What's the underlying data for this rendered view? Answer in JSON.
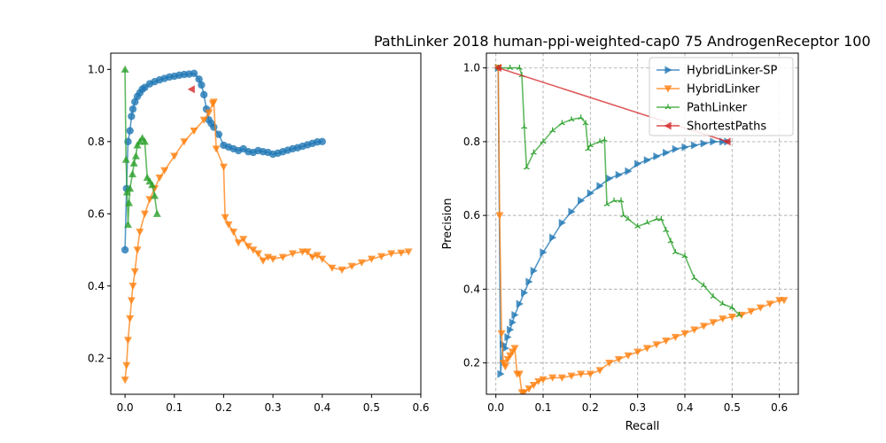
{
  "title": "PathLinker 2018 human-ppi-weighted-cap0 75 AndrogenReceptor 100",
  "colors": {
    "blue": "#1f77b4",
    "orange": "#ff7f0e",
    "green": "#2ca02c",
    "red": "#d62728"
  },
  "chart_data": [
    {
      "type": "line",
      "xlim": [
        -0.029,
        0.6
      ],
      "ylim": [
        0.1,
        1.045
      ],
      "xticks": [
        0.0,
        0.1,
        0.2,
        0.3,
        0.4,
        0.5,
        0.6
      ],
      "xtick_labels": [
        "0.0",
        "0.1",
        "0.2",
        "0.3",
        "0.4",
        "0.5",
        "0.6"
      ],
      "yticks": [
        0.2,
        0.4,
        0.6,
        0.8,
        1.0
      ],
      "ytick_labels": [
        "0.2",
        "0.4",
        "0.6",
        "0.8",
        "1.0"
      ],
      "xlabel": "",
      "ylabel": "",
      "grid": false,
      "series": [
        {
          "name": "HybridLinker-SP",
          "color": "#1f77b4",
          "marker": "circle",
          "x": [
            0.0,
            0.003,
            0.006,
            0.01,
            0.013,
            0.016,
            0.02,
            0.025,
            0.03,
            0.035,
            0.04,
            0.05,
            0.06,
            0.07,
            0.08,
            0.09,
            0.1,
            0.11,
            0.12,
            0.13,
            0.14,
            0.15,
            0.155,
            0.16,
            0.165,
            0.17,
            0.175,
            0.18,
            0.19,
            0.2,
            0.21,
            0.22,
            0.23,
            0.24,
            0.25,
            0.26,
            0.27,
            0.28,
            0.29,
            0.3,
            0.31,
            0.32,
            0.33,
            0.34,
            0.35,
            0.36,
            0.37,
            0.38,
            0.39,
            0.4
          ],
          "y": [
            0.5,
            0.67,
            0.8,
            0.83,
            0.87,
            0.89,
            0.91,
            0.925,
            0.935,
            0.945,
            0.95,
            0.96,
            0.966,
            0.971,
            0.975,
            0.979,
            0.981,
            0.984,
            0.986,
            0.987,
            0.989,
            0.973,
            0.957,
            0.93,
            0.89,
            0.86,
            0.85,
            0.84,
            0.82,
            0.79,
            0.785,
            0.78,
            0.775,
            0.78,
            0.772,
            0.77,
            0.775,
            0.772,
            0.77,
            0.765,
            0.768,
            0.772,
            0.776,
            0.78,
            0.783,
            0.787,
            0.791,
            0.795,
            0.799,
            0.8
          ]
        },
        {
          "name": "HybridLinker",
          "color": "#ff7f0e",
          "marker": "tri_down",
          "x": [
            0.0,
            0.003,
            0.006,
            0.01,
            0.013,
            0.016,
            0.02,
            0.025,
            0.03,
            0.04,
            0.05,
            0.06,
            0.07,
            0.08,
            0.1,
            0.12,
            0.14,
            0.16,
            0.17,
            0.178,
            0.18,
            0.185,
            0.2,
            0.203,
            0.21,
            0.22,
            0.23,
            0.24,
            0.25,
            0.26,
            0.27,
            0.28,
            0.29,
            0.3,
            0.32,
            0.34,
            0.36,
            0.37,
            0.38,
            0.39,
            0.4,
            0.42,
            0.44,
            0.46,
            0.48,
            0.5,
            0.52,
            0.54,
            0.56,
            0.575
          ],
          "y": [
            0.14,
            0.18,
            0.25,
            0.31,
            0.36,
            0.4,
            0.44,
            0.5,
            0.55,
            0.6,
            0.64,
            0.67,
            0.7,
            0.72,
            0.76,
            0.8,
            0.83,
            0.86,
            0.88,
            0.905,
            0.91,
            0.78,
            0.73,
            0.59,
            0.57,
            0.55,
            0.52,
            0.53,
            0.51,
            0.5,
            0.49,
            0.47,
            0.48,
            0.475,
            0.48,
            0.49,
            0.495,
            0.495,
            0.48,
            0.485,
            0.475,
            0.45,
            0.445,
            0.455,
            0.465,
            0.475,
            0.482,
            0.49,
            0.492,
            0.495
          ]
        },
        {
          "name": "PathLinker",
          "color": "#2ca02c",
          "marker": "triangle",
          "x": [
            0.0,
            0.002,
            0.004,
            0.006,
            0.008,
            0.01,
            0.015,
            0.018,
            0.022,
            0.025,
            0.03,
            0.035,
            0.04,
            0.045,
            0.05,
            0.055,
            0.06,
            0.065
          ],
          "y": [
            1.0,
            0.75,
            0.66,
            0.57,
            0.63,
            0.67,
            0.71,
            0.74,
            0.76,
            0.79,
            0.8,
            0.81,
            0.8,
            0.7,
            0.69,
            0.68,
            0.65,
            0.6
          ]
        },
        {
          "name": "ShortestPaths",
          "color": "#d62728",
          "marker": "tri_left",
          "x": [
            0.135
          ],
          "y": [
            0.945
          ]
        }
      ]
    },
    {
      "type": "line",
      "xlim": [
        -0.02,
        0.64
      ],
      "ylim": [
        0.115,
        1.04
      ],
      "xticks": [
        0.0,
        0.1,
        0.2,
        0.3,
        0.4,
        0.5,
        0.6
      ],
      "xtick_labels": [
        "0.0",
        "0.1",
        "0.2",
        "0.3",
        "0.4",
        "0.5",
        "0.6"
      ],
      "yticks": [
        0.2,
        0.4,
        0.6,
        0.8,
        1.0
      ],
      "ytick_labels": [
        "0.2",
        "0.4",
        "0.6",
        "0.8",
        "1.0"
      ],
      "xlabel": "Recall",
      "ylabel": "Precision",
      "grid": true,
      "legend_position": "top-right",
      "series": [
        {
          "name": "HybridLinker-SP",
          "color": "#1f77b4",
          "marker": "tri_right",
          "x": [
            0.005,
            0.01,
            0.015,
            0.02,
            0.025,
            0.03,
            0.035,
            0.04,
            0.05,
            0.06,
            0.07,
            0.08,
            0.1,
            0.12,
            0.14,
            0.16,
            0.18,
            0.2,
            0.22,
            0.24,
            0.26,
            0.28,
            0.3,
            0.32,
            0.34,
            0.36,
            0.38,
            0.4,
            0.42,
            0.44,
            0.46,
            0.48,
            0.49
          ],
          "y": [
            1.0,
            0.17,
            0.25,
            0.24,
            0.27,
            0.29,
            0.31,
            0.33,
            0.36,
            0.39,
            0.42,
            0.45,
            0.5,
            0.54,
            0.58,
            0.61,
            0.64,
            0.66,
            0.68,
            0.7,
            0.71,
            0.72,
            0.74,
            0.75,
            0.76,
            0.77,
            0.78,
            0.785,
            0.79,
            0.795,
            0.8,
            0.8,
            0.8
          ]
        },
        {
          "name": "HybridLinker",
          "color": "#ff7f0e",
          "marker": "tri_down",
          "x": [
            0.005,
            0.008,
            0.012,
            0.016,
            0.02,
            0.025,
            0.03,
            0.035,
            0.04,
            0.045,
            0.05,
            0.055,
            0.06,
            0.07,
            0.08,
            0.09,
            0.1,
            0.12,
            0.14,
            0.16,
            0.18,
            0.2,
            0.22,
            0.24,
            0.26,
            0.28,
            0.3,
            0.32,
            0.34,
            0.36,
            0.38,
            0.4,
            0.42,
            0.44,
            0.46,
            0.48,
            0.5,
            0.52,
            0.54,
            0.56,
            0.58,
            0.6,
            0.61
          ],
          "y": [
            1.0,
            0.6,
            0.28,
            0.2,
            0.19,
            0.21,
            0.22,
            0.23,
            0.24,
            0.17,
            0.17,
            0.12,
            0.12,
            0.13,
            0.14,
            0.15,
            0.155,
            0.16,
            0.16,
            0.165,
            0.17,
            0.17,
            0.18,
            0.2,
            0.21,
            0.22,
            0.23,
            0.24,
            0.25,
            0.26,
            0.27,
            0.28,
            0.29,
            0.3,
            0.31,
            0.32,
            0.325,
            0.33,
            0.34,
            0.35,
            0.36,
            0.37,
            0.37
          ]
        },
        {
          "name": "PathLinker",
          "color": "#2ca02c",
          "marker": "tri_up",
          "x": [
            0.005,
            0.03,
            0.05,
            0.055,
            0.06,
            0.065,
            0.08,
            0.1,
            0.12,
            0.14,
            0.16,
            0.18,
            0.19,
            0.195,
            0.2,
            0.22,
            0.23,
            0.235,
            0.25,
            0.265,
            0.27,
            0.28,
            0.3,
            0.32,
            0.34,
            0.35,
            0.36,
            0.37,
            0.38,
            0.4,
            0.42,
            0.44,
            0.46,
            0.48,
            0.5,
            0.515
          ],
          "y": [
            1.0,
            1.0,
            1.0,
            0.98,
            0.84,
            0.73,
            0.77,
            0.8,
            0.83,
            0.85,
            0.86,
            0.865,
            0.85,
            0.78,
            0.79,
            0.8,
            0.805,
            0.63,
            0.64,
            0.64,
            0.6,
            0.59,
            0.57,
            0.58,
            0.59,
            0.59,
            0.56,
            0.53,
            0.5,
            0.49,
            0.43,
            0.41,
            0.38,
            0.36,
            0.35,
            0.33
          ]
        },
        {
          "name": "ShortestPaths",
          "color": "#d62728",
          "marker": "tri_left",
          "x": [
            0.005,
            0.49
          ],
          "y": [
            1.0,
            0.8
          ]
        }
      ]
    }
  ]
}
